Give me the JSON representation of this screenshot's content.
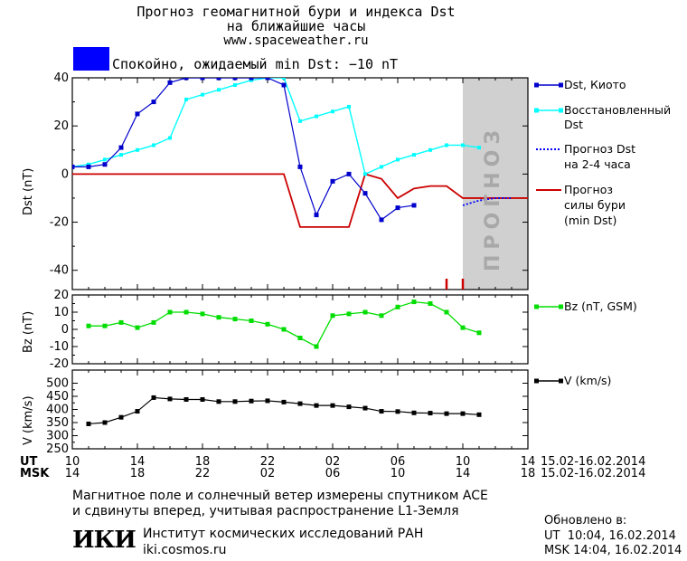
{
  "header": {
    "title_line1": "Прогноз геомагнитной бури и индекса Dst",
    "title_line2": "на ближайшие часы",
    "url": "www.spaceweather.ru",
    "status_text": "Спокойно, ожидаемый min Dst: −10 nT",
    "status_color": "#0000ff"
  },
  "legend": {
    "dst_kyoto": "Dst, Киото",
    "restored_1": "Восстановленный",
    "restored_2": "Dst",
    "forecast_1": "Прогноз Dst",
    "forecast_2": "на 2-4 часа",
    "storm_1": "Прогноз",
    "storm_2": "силы бури",
    "storm_3": "(min Dst)",
    "bz": "Bz (nT, GSM)",
    "v": "V (km/s)"
  },
  "forecast_label": "ПРОГНОЗ",
  "time_axis": {
    "ut_label": "UT",
    "msk_label": "MSK",
    "ut_ticks": [
      "10",
      "14",
      "18",
      "22",
      "02",
      "06",
      "10",
      "14"
    ],
    "msk_ticks": [
      "14",
      "18",
      "22",
      "02",
      "06",
      "10",
      "14",
      "18"
    ],
    "ut_range": "15.02-16.02.2014",
    "msk_range": "15.02-16.02.2014"
  },
  "footer": {
    "line1": "Магнитное поле и солнечный ветер измерены спутником ACE",
    "line2": "и сдвинуты вперед, учитывая распространение L1-Земля",
    "institute": "Институт космических исследований РАН",
    "site": "iki.cosmos.ru",
    "logo": "ИКИ",
    "updated_label": "Обновлено в:",
    "updated_ut": "UT  10:04, 16.02.2014",
    "updated_msk": "MSK 14:04, 16.02.2014"
  },
  "colors": {
    "dst_kyoto": "#0000cc",
    "restored": "#00ffff",
    "forecast": "#0000ff",
    "storm": "#cc0000",
    "bz": "#00dd00",
    "v": "#000000",
    "forecast_zone": "#d0d0d0"
  },
  "chart_data": [
    {
      "type": "line",
      "ylabel": "Dst (nT)",
      "x_unit": "hours from 10 UT 15.02.2014",
      "xlim": [
        0,
        28
      ],
      "ylim": [
        -48,
        40
      ],
      "yticks": [
        -40,
        -20,
        0,
        20,
        40
      ],
      "forecast_zone_start": 24,
      "series": [
        {
          "name": "Dst, Киото",
          "x": [
            0,
            1,
            2,
            3,
            4,
            5,
            6,
            7,
            8,
            9,
            10,
            11,
            12,
            13,
            14,
            15,
            16,
            17,
            18,
            19,
            20,
            21,
            22
          ],
          "y": [
            3,
            3,
            4,
            11,
            25,
            30,
            38,
            40,
            40,
            40,
            40,
            40,
            40,
            37,
            3,
            -17,
            -3,
            0,
            -8,
            -19,
            -14,
            -13,
            null
          ]
        },
        {
          "name": "Восстановленный Dst",
          "x": [
            0,
            1,
            2,
            3,
            4,
            5,
            6,
            7,
            8,
            9,
            10,
            11,
            12,
            13,
            14,
            15,
            16,
            17,
            18,
            19,
            20,
            21,
            22,
            23,
            24,
            25
          ],
          "y": [
            3,
            4,
            6,
            8,
            10,
            12,
            15,
            31,
            33,
            35,
            37,
            39,
            40,
            40,
            22,
            24,
            26,
            28,
            0,
            3,
            6,
            8,
            10,
            12,
            12,
            11
          ]
        },
        {
          "name": "Прогноз Dst на 2-4 часа",
          "x": [
            24,
            25,
            26,
            27
          ],
          "y": [
            -13,
            -11,
            -10,
            -10
          ]
        },
        {
          "name": "Прогноз силы бури (min Dst)",
          "x": [
            0,
            13,
            14,
            17,
            18,
            19,
            20,
            21,
            22,
            23,
            24,
            25,
            26,
            27,
            28
          ],
          "y": [
            0,
            0,
            -22,
            -22,
            0,
            -2,
            -10,
            -6,
            -5,
            -5,
            -10,
            -10,
            -10,
            -10,
            -10
          ]
        }
      ],
      "markers_red_ticks_x": [
        23,
        24
      ]
    },
    {
      "type": "line",
      "ylabel": "Bz (nT)",
      "xlim": [
        0,
        28
      ],
      "ylim": [
        -20,
        20
      ],
      "yticks": [
        -20,
        -10,
        0,
        10,
        20
      ],
      "series": [
        {
          "name": "Bz (nT, GSM)",
          "x": [
            1,
            2,
            3,
            4,
            5,
            6,
            7,
            8,
            9,
            10,
            11,
            12,
            13,
            14,
            15,
            16,
            17,
            18,
            19,
            20,
            21,
            22,
            23,
            24,
            25
          ],
          "y": [
            2,
            2,
            4,
            1,
            4,
            10,
            10,
            9,
            7,
            6,
            5,
            3,
            0,
            -5,
            -10,
            8,
            9,
            10,
            8,
            13,
            16,
            15,
            10,
            1,
            -2
          ]
        }
      ]
    },
    {
      "type": "line",
      "ylabel": "V (km/s)",
      "xlim": [
        0,
        28
      ],
      "ylim": [
        250,
        550
      ],
      "yticks": [
        250,
        300,
        350,
        400,
        450,
        500
      ],
      "series": [
        {
          "name": "V (km/s)",
          "x": [
            1,
            2,
            3,
            4,
            5,
            6,
            7,
            8,
            9,
            10,
            11,
            12,
            13,
            14,
            15,
            16,
            17,
            18,
            19,
            20,
            21,
            22,
            23,
            24,
            25
          ],
          "y": [
            345,
            350,
            370,
            393,
            445,
            440,
            438,
            438,
            430,
            430,
            432,
            433,
            428,
            422,
            415,
            415,
            410,
            405,
            393,
            392,
            387,
            386,
            384,
            384,
            380
          ]
        }
      ]
    }
  ]
}
